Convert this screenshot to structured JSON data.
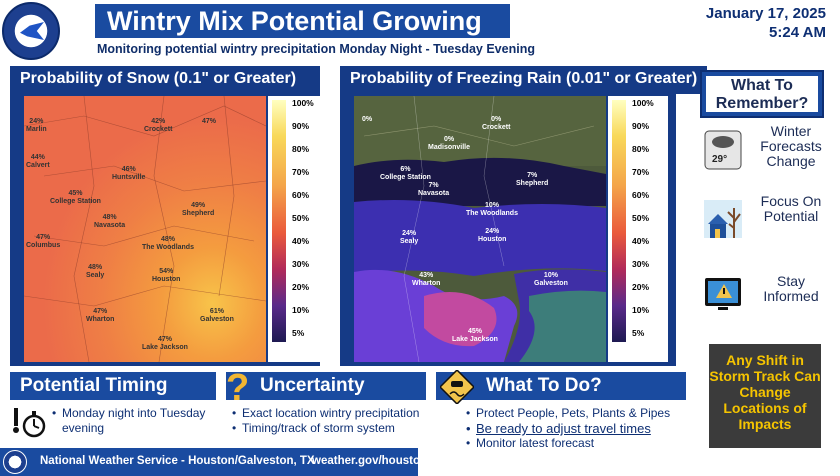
{
  "header": {
    "logo_text": "NATIONAL WEATHER SERVICE",
    "title": "Wintry Mix Potential Growing",
    "date": "January 17, 2025",
    "time": "5:24 AM",
    "subtitle": "Monitoring potential wintry precipitation Monday Night - Tuesday Evening"
  },
  "snow_map": {
    "title": "Probability of Snow (0.1\" or Greater)",
    "legend_ticks": [
      "100%",
      "90%",
      "80%",
      "70%",
      "60%",
      "50%",
      "40%",
      "30%",
      "20%",
      "10%",
      "5%"
    ],
    "labels": [
      {
        "t": "42%",
        "sub": "Crockett"
      },
      {
        "t": "47%",
        "sub": ""
      },
      {
        "t": "24%",
        "sub": "Marlin"
      },
      {
        "t": "44%",
        "sub": "Calvert"
      },
      {
        "t": "45%",
        "sub": "College Station"
      },
      {
        "t": "46%",
        "sub": "Huntsville"
      },
      {
        "t": "49%",
        "sub": "Shepherd"
      },
      {
        "t": "48%",
        "sub": "Navasota"
      },
      {
        "t": "48%",
        "sub": "The Woodlands"
      },
      {
        "t": "47%",
        "sub": "Columbus"
      },
      {
        "t": "48%",
        "sub": "Sealy"
      },
      {
        "t": "54%",
        "sub": "Houston"
      },
      {
        "t": "47%",
        "sub": "Wharton"
      },
      {
        "t": "61%",
        "sub": "Galveston"
      },
      {
        "t": "47%",
        "sub": "Lake Jackson"
      }
    ]
  },
  "ice_map": {
    "title": "Probability of Freezing Rain (0.01\" or Greater)",
    "legend_ticks": [
      "100%",
      "90%",
      "80%",
      "70%",
      "60%",
      "50%",
      "40%",
      "30%",
      "20%",
      "10%",
      "5%"
    ],
    "labels": [
      {
        "t": "0%",
        "sub": "Crockett"
      },
      {
        "t": "0%",
        "sub": "Madisonville"
      },
      {
        "t": "0%",
        "sub": ""
      },
      {
        "t": "6%",
        "sub": "College Station"
      },
      {
        "t": "7%",
        "sub": "Navasota"
      },
      {
        "t": "7%",
        "sub": "Shepherd"
      },
      {
        "t": "10%",
        "sub": "The Woodlands"
      },
      {
        "t": "24%",
        "sub": "Sealy"
      },
      {
        "t": "24%",
        "sub": "Houston"
      },
      {
        "t": "43%",
        "sub": "Wharton"
      },
      {
        "t": "10%",
        "sub": "Galveston"
      },
      {
        "t": "45%",
        "sub": "Lake Jackson"
      }
    ]
  },
  "sidebar": {
    "heading": "What To Remember?",
    "tips": [
      {
        "text": "Winter Forecasts Change",
        "icon": "thermometer-forecast-icon",
        "temp": "29°"
      },
      {
        "text": "Focus On Potential",
        "icon": "snowy-house-icon"
      },
      {
        "text": "Stay Informed",
        "icon": "tv-alert-icon"
      }
    ],
    "shift_box": "Any Shift in Storm Track Can Change Locations of Impacts"
  },
  "timing": {
    "heading": "Potential Timing",
    "items": [
      "Monday night into Tuesday",
      "evening"
    ]
  },
  "uncertainty": {
    "heading": "Uncertainty",
    "items": [
      "Exact location wintry precipitation",
      "Timing/track of storm system"
    ]
  },
  "todo": {
    "heading": "What To Do?",
    "items": [
      "Protect People, Pets, Plants & Pipes",
      "Be ready to adjust travel times",
      "Monitor latest forecast"
    ]
  },
  "footer": {
    "agency": "National Weather Service - Houston/Galveston, TX",
    "url": "weather.gov/houston"
  },
  "colors": {
    "brand_blue": "#1a4ba0",
    "dark_navy": "#0e2f73",
    "shift_text": "#f5c400"
  }
}
